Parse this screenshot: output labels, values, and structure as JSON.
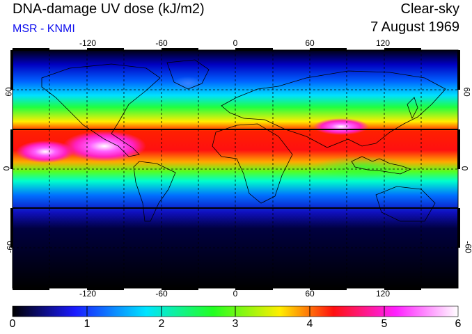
{
  "header": {
    "title": "DNA-damage UV dose (kJ/m2)",
    "organization": "MSR - KNMI",
    "condition": "Clear-sky",
    "date": "7 August 1969"
  },
  "map": {
    "projection": "equirectangular",
    "lon_range": [
      -180,
      180
    ],
    "lat_range": [
      -90,
      90
    ],
    "grid_lon_step": 30,
    "grid_lat_step": 30,
    "tropic_highlight_lat": [
      -30,
      30
    ],
    "x_tick_labels": [
      "-120",
      "-60",
      "0",
      "60",
      "120"
    ],
    "y_tick_labels_left": [
      "60",
      "0",
      "-60"
    ],
    "y_tick_labels_right": [
      "60",
      "0",
      "-60"
    ]
  },
  "colorbar": {
    "min": 0,
    "max": 6,
    "tick_labels": [
      "0",
      "1",
      "2",
      "3",
      "4",
      "5",
      "6"
    ],
    "colors": [
      "#000000",
      "#1a1aff",
      "#00e5ff",
      "#22ff22",
      "#ffee00",
      "#ff1010",
      "#ff20ff",
      "#ffffff"
    ]
  }
}
